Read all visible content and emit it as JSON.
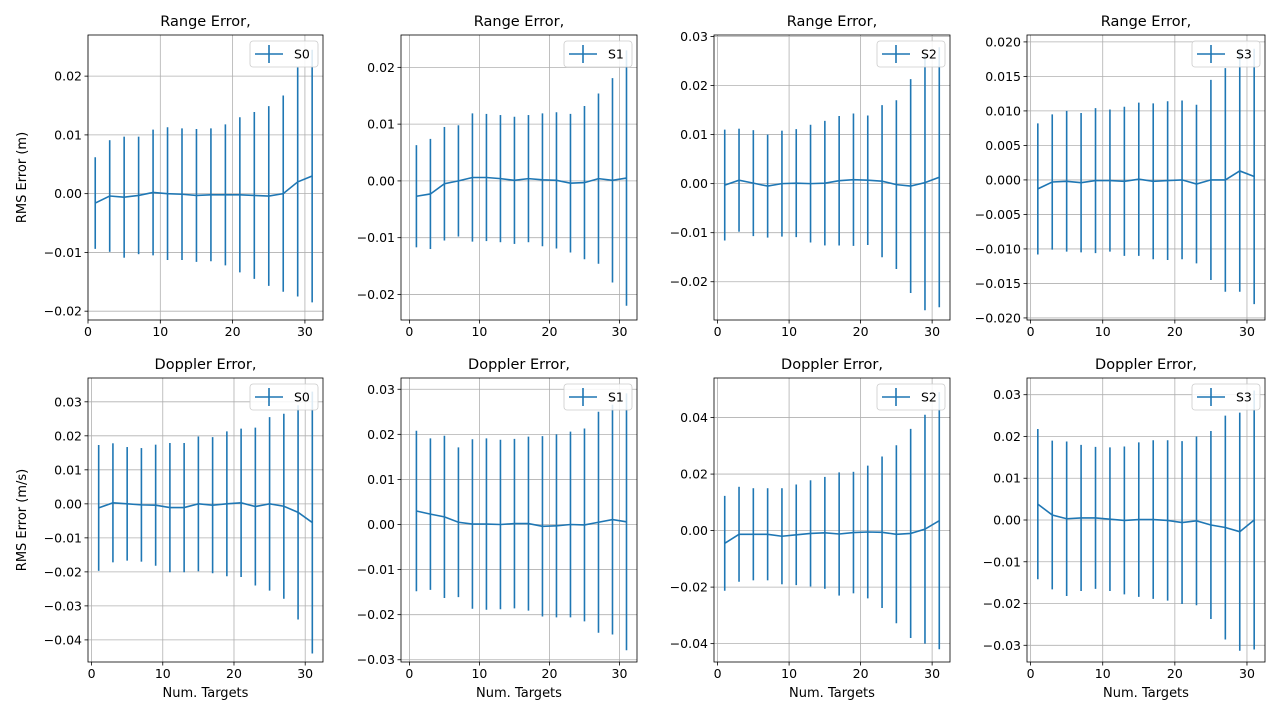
{
  "figure": {
    "accent": "#1f77b4",
    "grid": true,
    "legend_placement": "top-right"
  },
  "chart_data": [
    {
      "type": "line",
      "title": "Range Error,",
      "xlabel": "",
      "ylabel": "RMS Error (m)",
      "legend": [
        "S0"
      ],
      "xlim": [
        0,
        32.5
      ],
      "ylim": [
        -0.0215,
        0.027
      ],
      "xticks": [
        0,
        10,
        20,
        30
      ],
      "xtick_labels": [
        "0",
        "10",
        "20",
        "30"
      ],
      "yticks": [
        -0.02,
        -0.01,
        0.0,
        0.01,
        0.02
      ],
      "ytick_labels": [
        "−0.02",
        "−0.01",
        "0.00",
        "0.01",
        "0.02"
      ],
      "series": [
        {
          "name": "S0",
          "x": [
            1,
            3,
            5,
            7,
            9,
            11,
            13,
            15,
            17,
            19,
            21,
            23,
            25,
            27,
            29,
            31
          ],
          "y": [
            -0.0016,
            -0.0004,
            -0.0006,
            -0.0003,
            0.0002,
            0.0,
            -0.0001,
            -0.0003,
            -0.0002,
            -0.0002,
            -0.0002,
            -0.0003,
            -0.0004,
            0.0,
            0.002,
            0.003
          ],
          "err": [
            0.0078,
            0.0095,
            0.0103,
            0.01,
            0.0107,
            0.0113,
            0.0112,
            0.0113,
            0.0113,
            0.012,
            0.0132,
            0.0142,
            0.0153,
            0.0167,
            0.0195,
            0.0215
          ]
        }
      ]
    },
    {
      "type": "line",
      "title": "Range Error,",
      "xlabel": "",
      "ylabel": "",
      "legend": [
        "S1"
      ],
      "xlim": [
        -1.2,
        32.5
      ],
      "ylim": [
        -0.0245,
        0.0257
      ],
      "xticks": [
        0,
        10,
        20,
        30
      ],
      "xtick_labels": [
        "0",
        "10",
        "20",
        "30"
      ],
      "yticks": [
        -0.02,
        -0.01,
        0.0,
        0.01,
        0.02
      ],
      "ytick_labels": [
        "−0.02",
        "−0.01",
        "0.00",
        "0.01",
        "0.02"
      ],
      "series": [
        {
          "name": "S1",
          "x": [
            1,
            3,
            5,
            7,
            9,
            11,
            13,
            15,
            17,
            19,
            21,
            23,
            25,
            27,
            29,
            31
          ],
          "y": [
            -0.0027,
            -0.0023,
            -0.0005,
            0.0,
            0.0006,
            0.0006,
            0.0004,
            0.0001,
            0.0004,
            0.0002,
            0.0001,
            -0.0004,
            -0.0003,
            0.0004,
            0.0001,
            0.0005
          ],
          "err": [
            0.009,
            0.0097,
            0.01,
            0.0098,
            0.0113,
            0.0112,
            0.0112,
            0.0112,
            0.0112,
            0.0117,
            0.012,
            0.0122,
            0.0135,
            0.015,
            0.018,
            0.0225
          ]
        }
      ]
    },
    {
      "type": "line",
      "title": "Range Error,",
      "xlabel": "",
      "ylabel": "",
      "legend": [
        "S2"
      ],
      "xlim": [
        -0.5,
        32.5
      ],
      "ylim": [
        -0.0278,
        0.0303
      ],
      "xticks": [
        0,
        10,
        20,
        30
      ],
      "xtick_labels": [
        "0",
        "10",
        "20",
        "30"
      ],
      "yticks": [
        -0.02,
        -0.01,
        0.0,
        0.01,
        0.02,
        0.03
      ],
      "ytick_labels": [
        "−0.02",
        "−0.01",
        "0.00",
        "0.01",
        "0.02",
        "0.03"
      ],
      "series": [
        {
          "name": "S2",
          "x": [
            1,
            3,
            5,
            7,
            9,
            11,
            13,
            15,
            17,
            19,
            21,
            23,
            25,
            27,
            29,
            31
          ],
          "y": [
            -0.0003,
            0.0007,
            0.0001,
            -0.0005,
            0.0,
            0.0001,
            0.0,
            0.0001,
            0.0006,
            0.0008,
            0.0007,
            0.0005,
            -0.0002,
            -0.0005,
            0.0002,
            0.0013
          ],
          "err": [
            0.0113,
            0.0105,
            0.0108,
            0.0105,
            0.0108,
            0.011,
            0.012,
            0.0127,
            0.0132,
            0.0135,
            0.0132,
            0.0155,
            0.0172,
            0.0218,
            0.026,
            0.0265
          ]
        }
      ]
    },
    {
      "type": "line",
      "title": "Range Error,",
      "xlabel": "",
      "ylabel": "",
      "legend": [
        "S3"
      ],
      "xlim": [
        -0.5,
        32.5
      ],
      "ylim": [
        -0.0203,
        0.021
      ],
      "xticks": [
        0,
        10,
        20,
        30
      ],
      "xtick_labels": [
        "0",
        "10",
        "20",
        "30"
      ],
      "yticks": [
        -0.02,
        -0.015,
        -0.01,
        -0.005,
        0.0,
        0.005,
        0.01,
        0.015,
        0.02
      ],
      "ytick_labels": [
        "−0.020",
        "−0.015",
        "−0.010",
        "−0.005",
        "0.000",
        "0.005",
        "0.010",
        "0.015",
        "0.020"
      ],
      "series": [
        {
          "name": "S3",
          "x": [
            1,
            3,
            5,
            7,
            9,
            11,
            13,
            15,
            17,
            19,
            21,
            23,
            25,
            27,
            29,
            31
          ],
          "y": [
            -0.0013,
            -0.0003,
            -0.0002,
            -0.0004,
            -0.0001,
            -0.0001,
            -0.0002,
            0.0001,
            -0.0002,
            -0.0001,
            0.0,
            -0.0006,
            0.0,
            0.0,
            0.0013,
            0.0005
          ],
          "err": [
            0.0095,
            0.0098,
            0.0102,
            0.0101,
            0.0105,
            0.0103,
            0.0108,
            0.0111,
            0.0113,
            0.0115,
            0.0115,
            0.0115,
            0.0145,
            0.0162,
            0.0175,
            0.0185
          ]
        }
      ]
    },
    {
      "type": "line",
      "title": "Doppler Error,",
      "xlabel": "Num. Targets",
      "ylabel": "RMS Error (m/s)",
      "legend": [
        "S0"
      ],
      "xlim": [
        -0.5,
        32.5
      ],
      "ylim": [
        -0.0465,
        0.037
      ],
      "xticks": [
        0,
        10,
        20,
        30
      ],
      "xtick_labels": [
        "0",
        "10",
        "20",
        "30"
      ],
      "yticks": [
        -0.04,
        -0.03,
        -0.02,
        -0.01,
        0.0,
        0.01,
        0.02,
        0.03
      ],
      "ytick_labels": [
        "−0.04",
        "−0.03",
        "−0.02",
        "−0.01",
        "0.00",
        "0.01",
        "0.02",
        "0.03"
      ],
      "series": [
        {
          "name": "S0",
          "x": [
            1,
            3,
            5,
            7,
            9,
            11,
            13,
            15,
            17,
            19,
            21,
            23,
            25,
            27,
            29,
            31
          ],
          "y": [
            -0.0012,
            0.0003,
            0.0,
            -0.0003,
            -0.0004,
            -0.0011,
            -0.0011,
            0.0,
            -0.0004,
            0.0,
            0.0003,
            -0.0008,
            0.0,
            -0.0007,
            -0.0025,
            -0.0055
          ],
          "err": [
            0.0185,
            0.0175,
            0.0167,
            0.0167,
            0.0178,
            0.019,
            0.019,
            0.0198,
            0.02,
            0.0213,
            0.0218,
            0.0232,
            0.0255,
            0.0272,
            0.0315,
            0.0385
          ]
        }
      ]
    },
    {
      "type": "line",
      "title": "Doppler Error,",
      "xlabel": "Num. Targets",
      "ylabel": "",
      "legend": [
        "S1"
      ],
      "xlim": [
        -1.2,
        32.5
      ],
      "ylim": [
        -0.0305,
        0.0325
      ],
      "xticks": [
        0,
        10,
        20,
        30
      ],
      "xtick_labels": [
        "0",
        "10",
        "20",
        "30"
      ],
      "yticks": [
        -0.03,
        -0.02,
        -0.01,
        0.0,
        0.01,
        0.02,
        0.03
      ],
      "ytick_labels": [
        "−0.03",
        "−0.02",
        "−0.01",
        "0.00",
        "0.01",
        "0.02",
        "0.03"
      ],
      "series": [
        {
          "name": "S1",
          "x": [
            1,
            3,
            5,
            7,
            9,
            11,
            13,
            15,
            17,
            19,
            21,
            23,
            25,
            27,
            29,
            31
          ],
          "y": [
            0.003,
            0.0023,
            0.0017,
            0.0005,
            0.0001,
            0.0001,
            0.0,
            0.0002,
            0.0002,
            -0.0004,
            -0.0003,
            0.0,
            -0.0001,
            0.0005,
            0.0011,
            0.0006
          ],
          "err": [
            0.0178,
            0.0168,
            0.018,
            0.0166,
            0.0188,
            0.019,
            0.0188,
            0.0188,
            0.0193,
            0.02,
            0.0203,
            0.0206,
            0.0214,
            0.0245,
            0.0255,
            0.0285
          ]
        }
      ]
    },
    {
      "type": "line",
      "title": "Doppler Error,",
      "xlabel": "Num. Targets",
      "ylabel": "",
      "legend": [
        "S2"
      ],
      "xlim": [
        -0.5,
        32.5
      ],
      "ylim": [
        -0.0465,
        0.054
      ],
      "xticks": [
        0,
        10,
        20,
        30
      ],
      "xtick_labels": [
        "0",
        "10",
        "20",
        "30"
      ],
      "yticks": [
        -0.04,
        -0.02,
        0.0,
        0.02,
        0.04
      ],
      "ytick_labels": [
        "−0.04",
        "−0.02",
        "0.00",
        "0.02",
        "0.04"
      ],
      "series": [
        {
          "name": "S2",
          "x": [
            1,
            3,
            5,
            7,
            9,
            11,
            13,
            15,
            17,
            19,
            21,
            23,
            25,
            27,
            29,
            31
          ],
          "y": [
            -0.0045,
            -0.0013,
            -0.0013,
            -0.0013,
            -0.002,
            -0.0015,
            -0.001,
            -0.0008,
            -0.0012,
            -0.0007,
            -0.0005,
            -0.0006,
            -0.0013,
            -0.001,
            0.0005,
            0.0035
          ],
          "err": [
            0.0168,
            0.0168,
            0.0163,
            0.0163,
            0.017,
            0.0178,
            0.0188,
            0.0198,
            0.0218,
            0.0215,
            0.0235,
            0.0268,
            0.0315,
            0.037,
            0.0405,
            0.0455
          ]
        }
      ]
    },
    {
      "type": "line",
      "title": "Doppler Error,",
      "xlabel": "Num. Targets",
      "ylabel": "",
      "legend": [
        "S3"
      ],
      "xlim": [
        -0.5,
        32.5
      ],
      "ylim": [
        -0.034,
        0.034
      ],
      "xticks": [
        0,
        10,
        20,
        30
      ],
      "xtick_labels": [
        "0",
        "10",
        "20",
        "30"
      ],
      "yticks": [
        -0.03,
        -0.02,
        -0.01,
        0.0,
        0.01,
        0.02,
        0.03
      ],
      "ytick_labels": [
        "−0.03",
        "−0.02",
        "−0.01",
        "0.00",
        "0.01",
        "0.02",
        "0.03"
      ],
      "series": [
        {
          "name": "S3",
          "x": [
            1,
            3,
            5,
            7,
            9,
            11,
            13,
            15,
            17,
            19,
            21,
            23,
            25,
            27,
            29,
            31
          ],
          "y": [
            0.0038,
            0.0012,
            0.0003,
            0.0005,
            0.0005,
            0.0002,
            -0.0001,
            0.0001,
            0.0001,
            -0.0001,
            -0.0006,
            -0.0002,
            -0.0012,
            -0.0018,
            -0.0028,
            0.0
          ],
          "err": [
            0.018,
            0.0178,
            0.0185,
            0.0175,
            0.017,
            0.0172,
            0.0177,
            0.0185,
            0.019,
            0.0192,
            0.0195,
            0.0202,
            0.0225,
            0.0268,
            0.0285,
            0.031
          ]
        }
      ]
    }
  ]
}
